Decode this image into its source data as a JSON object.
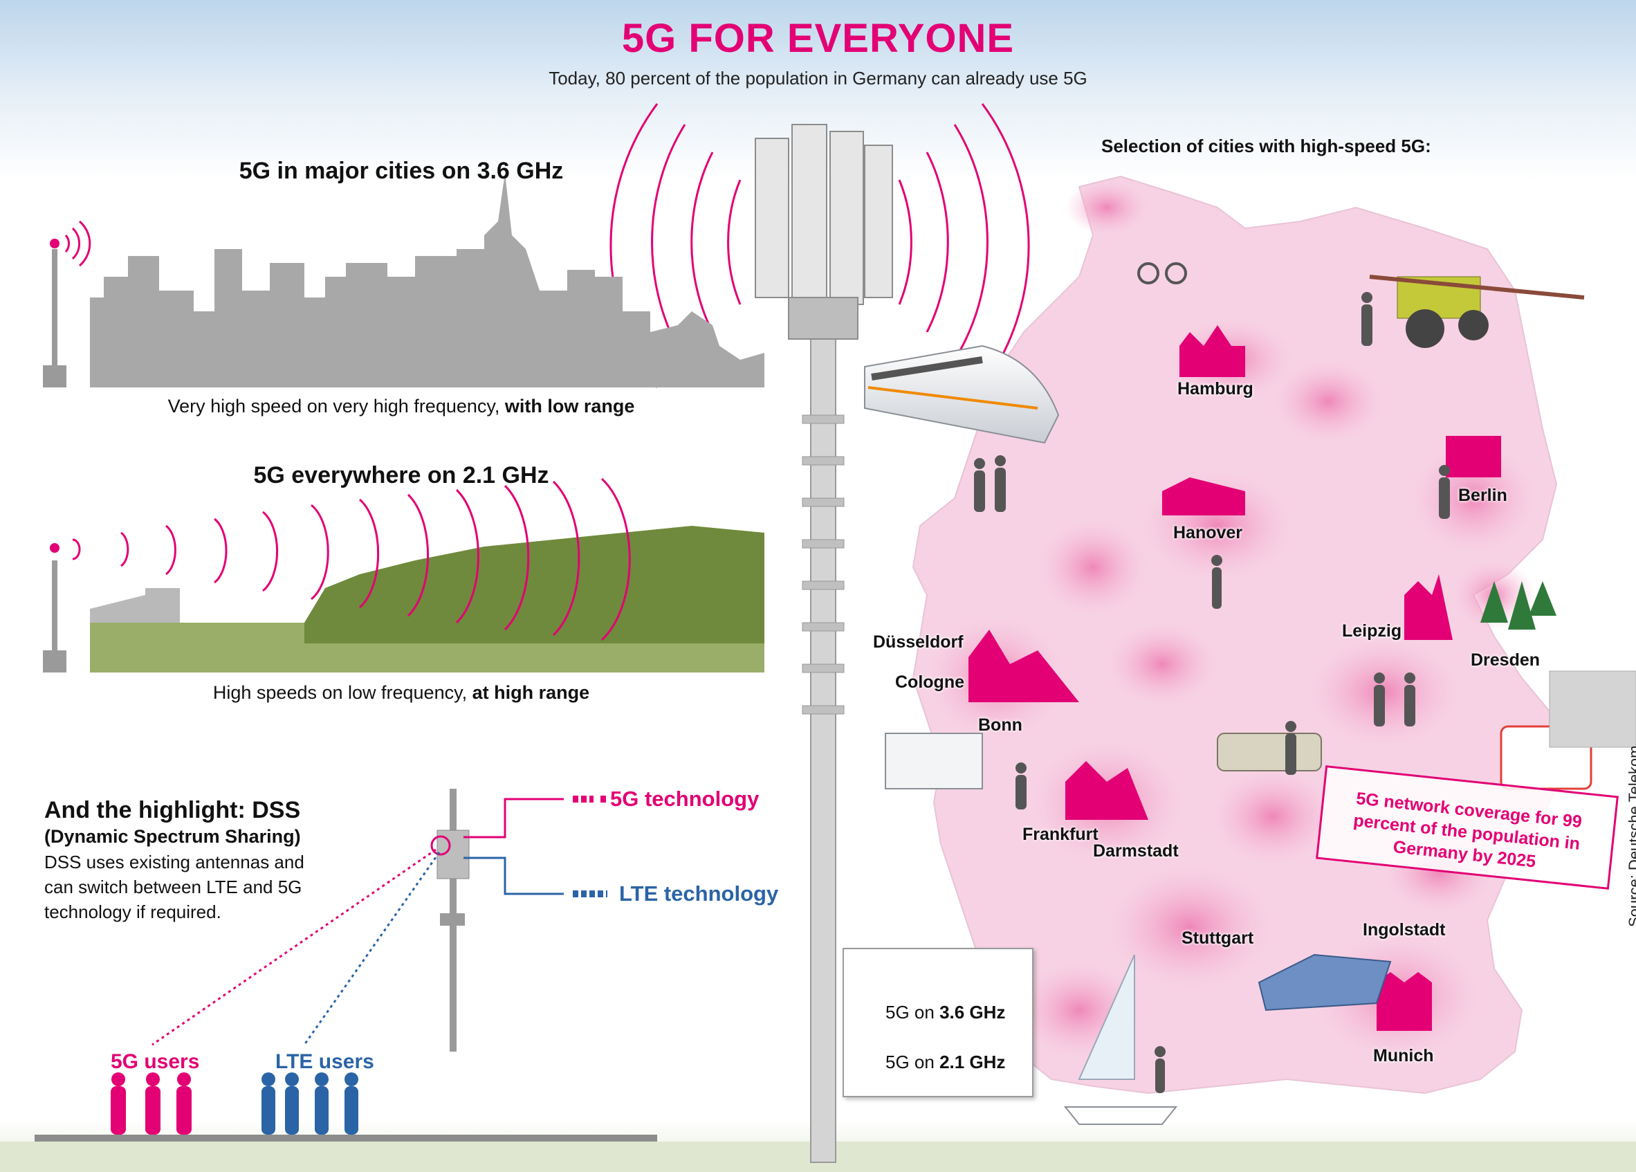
{
  "header": {
    "title": "5G FOR EVERYONE",
    "subtitle": "Today, 80 percent of the population in Germany can already use 5G"
  },
  "left": {
    "cities_heading": "5G in major cities on 3.6 GHz",
    "cities_caption_plain": "Very high speed on very high frequency, ",
    "cities_caption_bold": "with low range",
    "everywhere_heading": "5G everywhere on 2.1 GHz",
    "everywhere_caption_plain": "High speeds on low frequency, ",
    "everywhere_caption_bold": "at high range"
  },
  "dss": {
    "title": "And the highlight: DSS",
    "subtitle": "(Dynamic Spectrum Sharing)",
    "body": "DSS uses existing antennas and can switch between LTE and 5G technology if required.",
    "tech_5g": "5G technology",
    "tech_lte": "LTE technology",
    "users_5g": "5G users",
    "users_lte": "LTE users"
  },
  "map": {
    "heading": "Selection of cities with high-speed 5G:",
    "cities": {
      "hamburg": "Hamburg",
      "hanover": "Hanover",
      "berlin": "Berlin",
      "dusseldorf": "Düsseldorf",
      "cologne": "Cologne",
      "bonn": "Bonn",
      "leipzig": "Leipzig",
      "dresden": "Dresden",
      "frankfurt": "Frankfurt",
      "darmstadt": "Darmstadt",
      "stuttgart": "Stuttgart",
      "ingolstadt": "Ingolstadt",
      "munich": "Munich"
    },
    "callout": "5G network coverage for 99 percent of the population in Germany by 2025",
    "legend": {
      "item1_plain": "5G on ",
      "item1_bold": "3.6 GHz",
      "item2_plain": "5G on ",
      "item2_bold": "2.1 GHz"
    }
  },
  "source": "Source: Deutsche Telekom",
  "colors": {
    "magenta": "#e20074",
    "lte_blue": "#2a64a6",
    "coverage_pink": "#f4b6d4",
    "skyline_gray": "#a8a8a8",
    "forest_green": "#6f8a3c"
  }
}
